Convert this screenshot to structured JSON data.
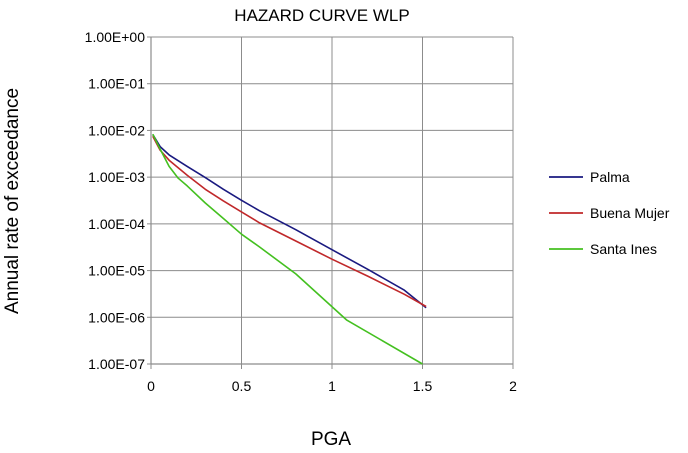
{
  "chart_data": {
    "type": "line",
    "title": "HAZARD CURVE WLP",
    "xlabel": "PGA",
    "ylabel": "Annual rate of exceedance",
    "xlim": [
      0,
      2
    ],
    "ylim": [
      1e-07,
      1
    ],
    "yscale": "log",
    "grid": true,
    "legend_position": "right",
    "x_ticks": [
      0,
      0.5,
      1,
      1.5,
      2
    ],
    "x_tick_labels": [
      "0",
      "0.5",
      "1",
      "1.5",
      "2"
    ],
    "y_ticks": [
      1,
      0.1,
      0.01,
      0.001,
      0.0001,
      1e-05,
      1e-06,
      1e-07
    ],
    "y_tick_labels": [
      "1.00E+00",
      "1.00E-01",
      "1.00E-02",
      "1.00E-03",
      "1.00E-04",
      "1.00E-05",
      "1.00E-06",
      "1.00E-07"
    ],
    "series": [
      {
        "name": "Palma",
        "color": "#1a1a80",
        "x": [
          0.01,
          0.05,
          0.1,
          0.2,
          0.3,
          0.4,
          0.5,
          0.6,
          0.8,
          1.0,
          1.2,
          1.4,
          1.52
        ],
        "y": [
          0.0082,
          0.0045,
          0.003,
          0.0017,
          0.00098,
          0.00055,
          0.00032,
          0.00019,
          7.5e-05,
          2.8e-05,
          1.05e-05,
          3.8e-06,
          1.6e-06
        ]
      },
      {
        "name": "Buena Mujer",
        "color": "#c0282a",
        "x": [
          0.01,
          0.05,
          0.1,
          0.2,
          0.3,
          0.4,
          0.5,
          0.6,
          0.8,
          1.0,
          1.2,
          1.4,
          1.52
        ],
        "y": [
          0.0075,
          0.0038,
          0.0023,
          0.0011,
          0.00055,
          0.00031,
          0.00018,
          0.000105,
          4.3e-05,
          1.75e-05,
          7.5e-06,
          3.1e-06,
          1.7e-06
        ]
      },
      {
        "name": "Santa Ines",
        "color": "#44c020",
        "x": [
          0.01,
          0.05,
          0.1,
          0.15,
          0.2,
          0.3,
          0.4,
          0.5,
          0.6,
          0.8,
          1.08,
          1.5
        ],
        "y": [
          0.0083,
          0.004,
          0.0017,
          0.00095,
          0.00065,
          0.00028,
          0.00013,
          6e-05,
          3.2e-05,
          8.5e-06,
          8.8e-07,
          1e-07
        ]
      }
    ]
  }
}
